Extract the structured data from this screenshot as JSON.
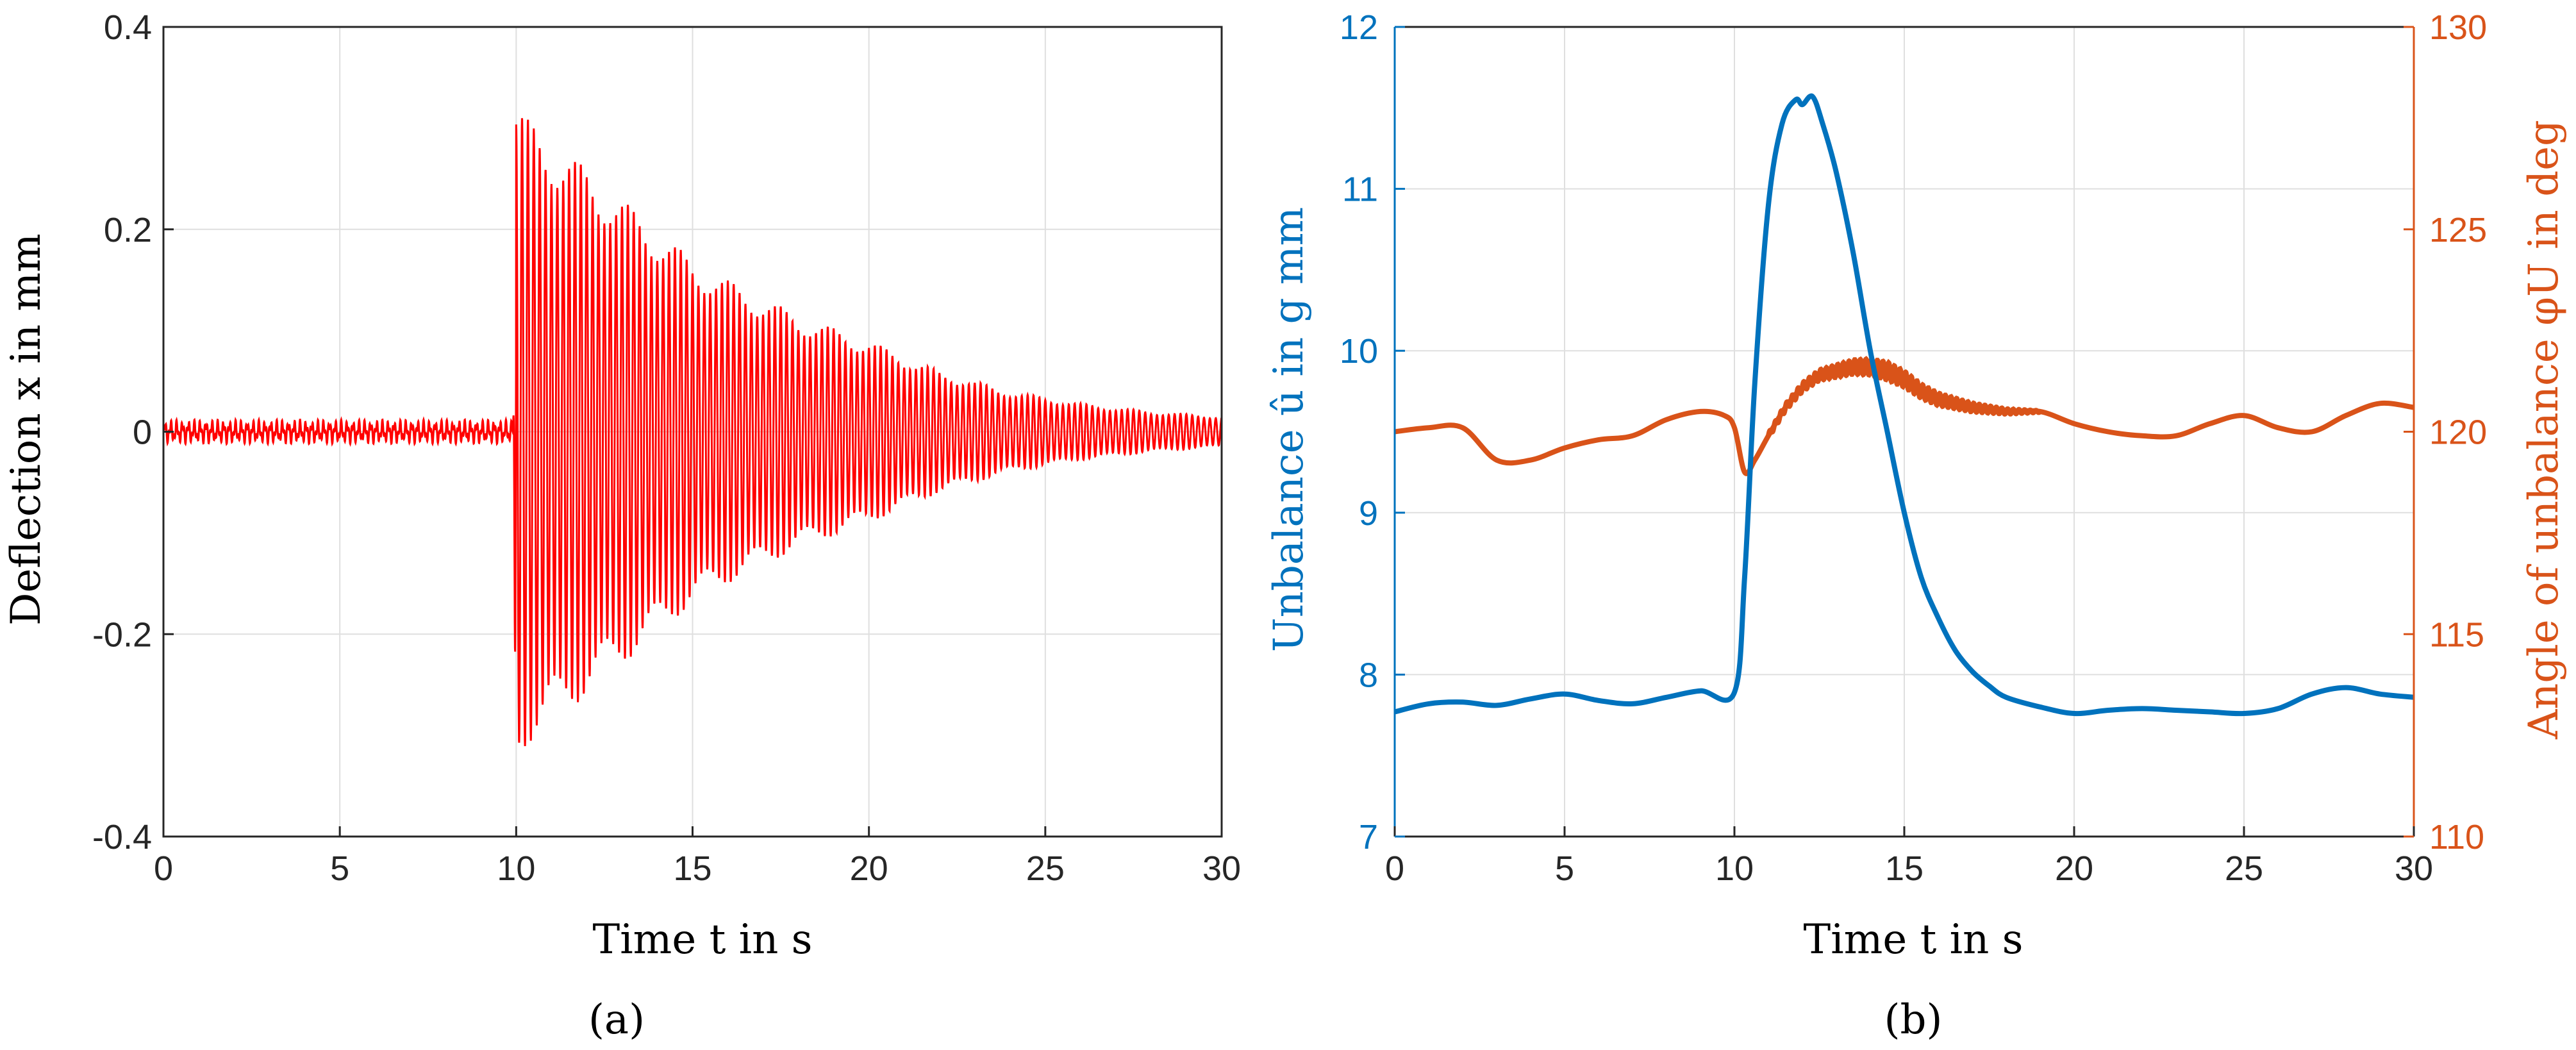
{
  "figure": {
    "panel_a_label": "(a)",
    "panel_b_label": "(b)"
  },
  "colors": {
    "deflection": "#ff0000",
    "unbalance": "#0072bd",
    "angle": "#d95319",
    "grid": "#dfdfdf",
    "axis": "#262626"
  },
  "chart_data": [
    {
      "type": "line",
      "panel": "a",
      "title": "",
      "xlabel": "Time t in s",
      "ylabel": "Deflection x in mm",
      "xlim": [
        0,
        30
      ],
      "ylim": [
        -0.4,
        0.4
      ],
      "xticks": [
        0,
        5,
        10,
        15,
        20,
        25,
        30
      ],
      "yticks": [
        -0.4,
        -0.2,
        0,
        0.2,
        0.4
      ],
      "ytick_labels": [
        "-0.4",
        "-0.2",
        "0",
        "0.2",
        "0.4"
      ],
      "grid": true,
      "series": [
        {
          "color": "#ff0000",
          "envelope": {
            "x": [
              0,
              9.9,
              10.0,
              10.3,
              11,
              12,
              13,
              14,
              15,
              16,
              18,
              20,
              22,
              24,
              26,
              28,
              30
            ],
            "amplitude": [
              0.012,
              0.012,
              0.33,
              0.31,
              0.29,
              0.26,
              0.23,
              0.2,
              0.17,
              0.15,
              0.115,
              0.09,
              0.06,
              0.04,
              0.028,
              0.02,
              0.015
            ]
          },
          "oscillation_frequency_hz": 6.0
        }
      ]
    },
    {
      "type": "line",
      "panel": "b",
      "title": "",
      "xlabel": "Time t in s",
      "ylabel": "Unbalance û in g mm",
      "ylabel_right": "Angle of unbalance φU in deg",
      "xlim": [
        0,
        30
      ],
      "ylim": [
        7,
        12
      ],
      "ylim_right": [
        110,
        130
      ],
      "xticks": [
        0,
        5,
        10,
        15,
        20,
        25,
        30
      ],
      "yticks": [
        7,
        8,
        9,
        10,
        11,
        12
      ],
      "yticks_right": [
        110,
        115,
        120,
        125,
        130
      ],
      "grid": true,
      "series": [
        {
          "axis": "left",
          "color": "#0072bd",
          "x": [
            0,
            1,
            2,
            3,
            4,
            5,
            6,
            7,
            8,
            9,
            10,
            10.3,
            10.6,
            11,
            11.4,
            11.8,
            12,
            12.3,
            12.6,
            13,
            13.5,
            14,
            14.5,
            15,
            15.5,
            16,
            16.5,
            17,
            17.5,
            18,
            19,
            20,
            21,
            22,
            23,
            24,
            25,
            26,
            27,
            28,
            29,
            30
          ],
          "y": [
            7.77,
            7.82,
            7.83,
            7.81,
            7.85,
            7.88,
            7.84,
            7.82,
            7.86,
            7.9,
            7.89,
            8.6,
            9.8,
            10.9,
            11.4,
            11.55,
            11.52,
            11.57,
            11.4,
            11.1,
            10.6,
            10.0,
            9.5,
            9.0,
            8.6,
            8.35,
            8.15,
            8.02,
            7.93,
            7.86,
            7.8,
            7.76,
            7.78,
            7.79,
            7.78,
            7.77,
            7.76,
            7.79,
            7.88,
            7.92,
            7.88,
            7.86
          ]
        },
        {
          "axis": "right",
          "color": "#d95319",
          "x": [
            0,
            1,
            2,
            3,
            4,
            5,
            6,
            7,
            8,
            9,
            9.7,
            10,
            10.3,
            10.6,
            11,
            11.5,
            12,
            12.5,
            13,
            13.5,
            14,
            14.5,
            15,
            15.5,
            16,
            17,
            18,
            19,
            20,
            21,
            22,
            23,
            24,
            25,
            26,
            27,
            28,
            29,
            30
          ],
          "y": [
            120.0,
            120.1,
            120.1,
            119.3,
            119.3,
            119.6,
            119.8,
            119.9,
            120.3,
            120.5,
            120.4,
            120.1,
            119.0,
            119.3,
            119.9,
            120.6,
            121.1,
            121.4,
            121.5,
            121.6,
            121.6,
            121.5,
            121.3,
            121.0,
            120.8,
            120.6,
            120.5,
            120.5,
            120.2,
            120.0,
            119.9,
            119.9,
            120.2,
            120.4,
            120.1,
            120.0,
            120.4,
            120.7,
            120.6
          ]
        }
      ]
    }
  ]
}
